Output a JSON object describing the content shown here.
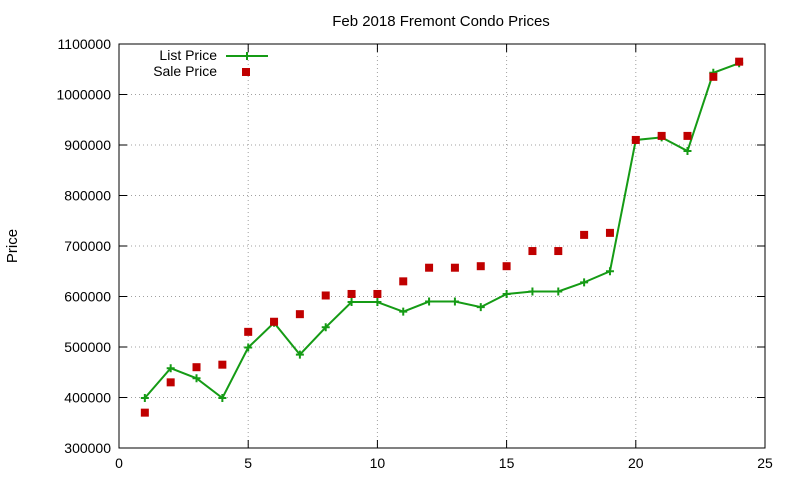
{
  "chart_data": {
    "type": "line",
    "title": "Feb 2018 Fremont Condo Prices",
    "xlabel": "",
    "ylabel": "Price",
    "xlim": [
      0,
      25
    ],
    "ylim": [
      300000,
      1100000
    ],
    "xticks": [
      0,
      5,
      10,
      15,
      20,
      25
    ],
    "yticks": [
      300000,
      400000,
      500000,
      600000,
      700000,
      800000,
      900000,
      1000000,
      1100000
    ],
    "grid": true,
    "legend_position": "top-left",
    "series": [
      {
        "name": "List Price",
        "style": "line-with-plus-markers",
        "color": "#159B15",
        "x": [
          1,
          2,
          3,
          4,
          5,
          6,
          7,
          8,
          9,
          10,
          11,
          12,
          13,
          14,
          15,
          16,
          17,
          18,
          19,
          20,
          21,
          22,
          23,
          24
        ],
        "values": [
          399000,
          458000,
          438000,
          399000,
          499000,
          548000,
          485000,
          539000,
          589000,
          589000,
          570000,
          590000,
          590000,
          579000,
          605000,
          610000,
          610000,
          628000,
          650000,
          910000,
          915000,
          888000,
          1043000,
          1062000
        ]
      },
      {
        "name": "Sale Price",
        "style": "square-markers",
        "color": "#C00000",
        "x": [
          1,
          2,
          3,
          4,
          5,
          6,
          7,
          8,
          9,
          10,
          11,
          12,
          13,
          14,
          15,
          16,
          17,
          18,
          19,
          20,
          21,
          22,
          23,
          24
        ],
        "values": [
          370000,
          430000,
          460000,
          465000,
          530000,
          550000,
          565000,
          602000,
          605000,
          605000,
          630000,
          657000,
          657000,
          660000,
          660000,
          690000,
          690000,
          722000,
          726000,
          910000,
          918000,
          918000,
          1035000,
          1065000
        ]
      }
    ]
  }
}
